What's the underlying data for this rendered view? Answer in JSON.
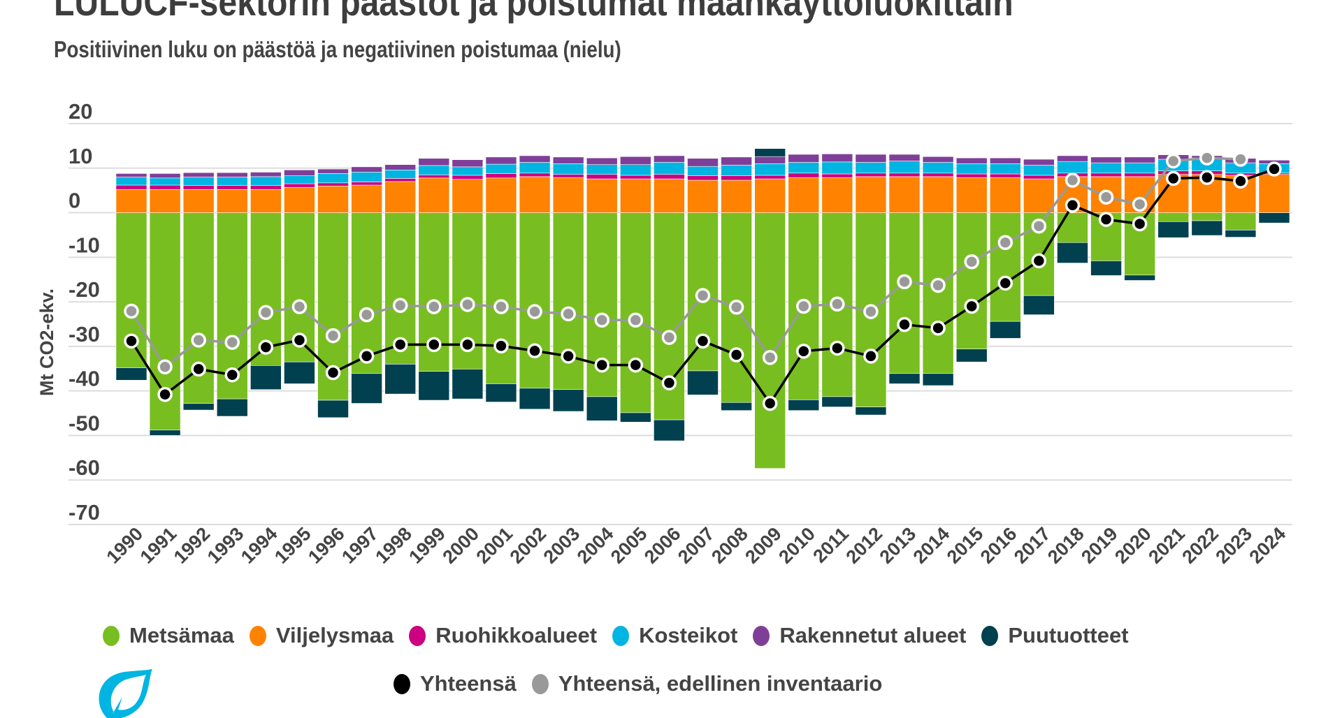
{
  "title": "LULUCF-sektorin päästöt ja poistumat maankäyttöluokittain",
  "subtitle": "Positiivinen luku on päästöä ja negatiivinen poistumaa (nielu)",
  "chart_data": {
    "type": "bar",
    "stacked": true,
    "ylabel": "Mt CO2-ekv.",
    "ylim": [
      -70,
      20
    ],
    "yticks": [
      "20",
      "10",
      "0",
      "-10",
      "-20",
      "-30",
      "-40",
      "-50",
      "-60",
      "-70"
    ],
    "grid": true,
    "legend_position": "bottom",
    "categories": [
      "1990",
      "1991",
      "1992",
      "1993",
      "1994",
      "1995",
      "1996",
      "1997",
      "1998",
      "1999",
      "2000",
      "2001",
      "2002",
      "2003",
      "2004",
      "2005",
      "2006",
      "2007",
      "2008",
      "2009",
      "2010",
      "2011",
      "2012",
      "2013",
      "2014",
      "2015",
      "2016",
      "2017",
      "2018",
      "2019",
      "2020",
      "2021",
      "2022",
      "2023",
      "2024"
    ],
    "series": [
      {
        "name": "Metsämaa",
        "color": "#78BE20",
        "values": [
          -34.8,
          -48.8,
          -42.8,
          -41.8,
          -34.3,
          -33.5,
          -42.1,
          -36.1,
          -34.0,
          -35.6,
          -35.1,
          -38.4,
          -39.4,
          -39.7,
          -41.3,
          -44.9,
          -46.5,
          -35.5,
          -42.6,
          -57.4,
          -42.0,
          -41.3,
          -43.6,
          -36.1,
          -36.1,
          -30.6,
          -24.4,
          -18.6,
          -6.7,
          -10.8,
          -14.0,
          -2.0,
          -1.8,
          -3.9,
          0
        ]
      },
      {
        "name": "Viljelysmaa",
        "color": "#FF8200",
        "values": [
          5.2,
          5.2,
          5.2,
          5.2,
          5.2,
          5.7,
          6.0,
          6.2,
          7.0,
          7.8,
          7.5,
          7.8,
          8.1,
          7.9,
          7.6,
          7.6,
          7.6,
          7.3,
          7.3,
          7.6,
          7.9,
          7.9,
          8.1,
          8.1,
          8.1,
          7.9,
          7.9,
          7.6,
          8.1,
          8.1,
          8.1,
          8.6,
          8.6,
          8.4,
          8.6
        ]
      },
      {
        "name": "Ruohikkoalueet",
        "color": "#CC0080",
        "values": [
          1.0,
          1.0,
          0.9,
          0.9,
          0.9,
          0.8,
          0.7,
          0.7,
          0.7,
          0.7,
          0.9,
          1.0,
          0.8,
          0.7,
          1.0,
          0.8,
          1.0,
          1.0,
          1.0,
          0.8,
          1.0,
          0.8,
          0.8,
          0.8,
          0.8,
          0.8,
          0.8,
          0.8,
          0.8,
          0.8,
          0.8,
          0.8,
          0.8,
          0.5,
          0.3
        ]
      },
      {
        "name": "Kosteikot",
        "color": "#00B5E2",
        "values": [
          1.8,
          1.6,
          1.9,
          1.9,
          2.0,
          1.8,
          2.1,
          2.2,
          1.9,
          2.1,
          1.9,
          2.1,
          2.4,
          2.4,
          2.2,
          2.4,
          2.7,
          2.1,
          2.4,
          2.6,
          2.4,
          2.7,
          2.4,
          2.7,
          2.4,
          2.3,
          2.3,
          2.3,
          2.6,
          2.3,
          2.3,
          2.6,
          2.9,
          2.3,
          2.1
        ]
      },
      {
        "name": "Rakennetut alueet",
        "color": "#7F3F98",
        "values": [
          0.8,
          1.0,
          1.0,
          1.0,
          1.0,
          1.3,
          1.0,
          1.2,
          1.2,
          1.6,
          1.6,
          1.6,
          1.5,
          1.5,
          1.5,
          1.8,
          1.5,
          1.8,
          1.8,
          1.6,
          1.8,
          1.8,
          1.8,
          1.5,
          1.3,
          1.3,
          1.3,
          1.3,
          1.3,
          1.3,
          1.3,
          1.0,
          0.5,
          1.0,
          0.8
        ]
      },
      {
        "name": "Puutuotteet",
        "color": "#00404F",
        "values": [
          -2.8,
          -1.2,
          -1.5,
          -3.9,
          -5.4,
          -4.9,
          -3.9,
          -6.7,
          -6.7,
          -6.5,
          -6.7,
          -4.1,
          -4.7,
          -4.9,
          -5.4,
          -2.1,
          -4.7,
          -5.4,
          -1.8,
          1.8,
          -2.4,
          -2.3,
          -1.8,
          -2.3,
          -2.7,
          -2.9,
          -3.8,
          -4.3,
          -4.6,
          -3.3,
          -1.2,
          -3.6,
          -3.3,
          -1.6,
          -2.3
        ]
      }
    ],
    "lines": [
      {
        "name": "Yhteensä",
        "color": "#000000",
        "values": [
          -28.8,
          -40.8,
          -35.1,
          -36.4,
          -30.2,
          -28.6,
          -35.9,
          -32.2,
          -29.6,
          -29.6,
          -29.6,
          -29.9,
          -31.0,
          -32.2,
          -34.2,
          -34.2,
          -38.2,
          -28.8,
          -31.9,
          -42.8,
          -31.1,
          -30.4,
          -32.2,
          -25.1,
          -25.9,
          -21.0,
          -15.8,
          -10.8,
          1.7,
          -1.5,
          -2.5,
          7.7,
          7.9,
          7.1,
          9.8
        ]
      },
      {
        "name": "Yhteensä, edellinen inventaario",
        "color": "#999999",
        "values": [
          -22.1,
          -34.6,
          -28.6,
          -29.1,
          -22.4,
          -21.1,
          -27.6,
          -22.9,
          -20.8,
          -21.1,
          -20.6,
          -21.1,
          -22.2,
          -22.7,
          -24.1,
          -24.1,
          -28.0,
          -18.6,
          -21.2,
          -32.5,
          -21.0,
          -20.5,
          -22.2,
          -15.5,
          -16.3,
          -11.0,
          -6.7,
          -3.0,
          7.3,
          3.5,
          1.9,
          11.6,
          12.3,
          12.0,
          null
        ]
      }
    ]
  },
  "logo": {
    "icon": "leaf-logo",
    "color": "#00B5E2"
  }
}
